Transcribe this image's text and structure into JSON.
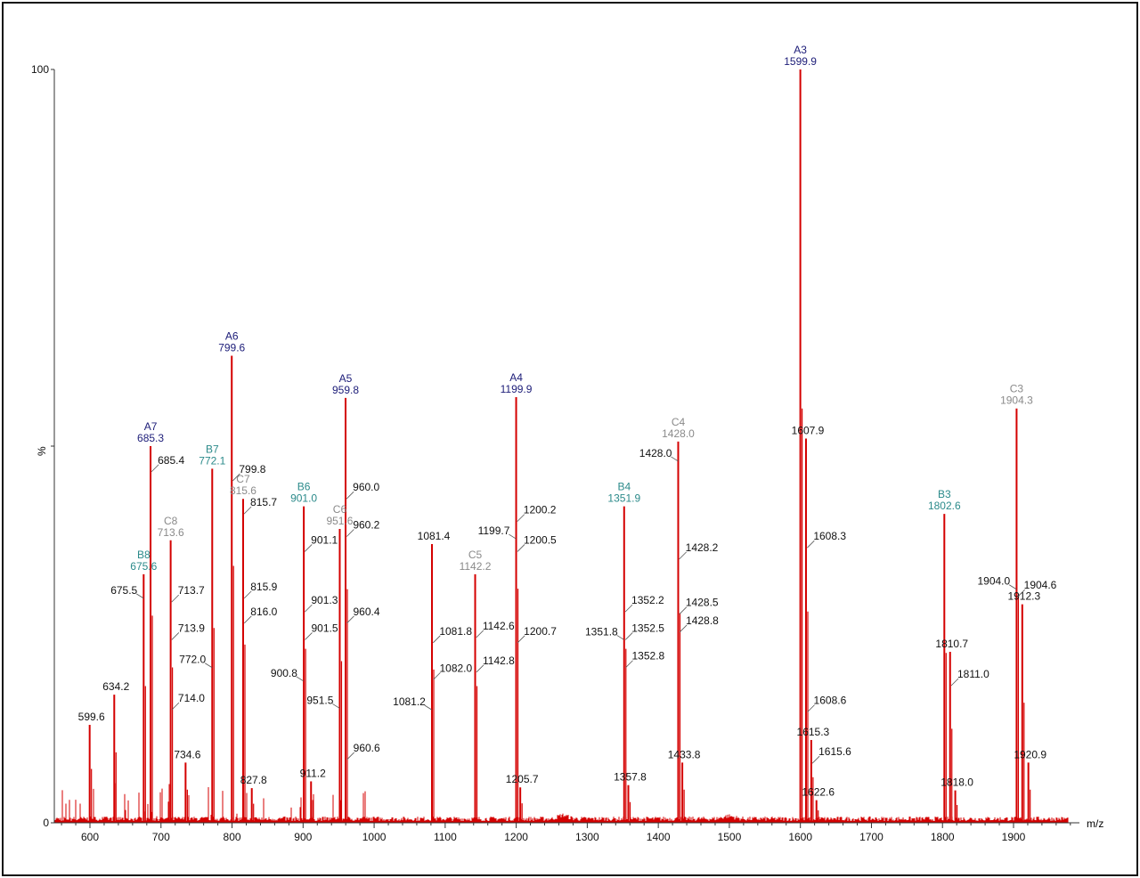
{
  "chart_data": {
    "type": "bar",
    "xlabel": "m/z",
    "ylabel": "%",
    "xlim": [
      550,
      1990
    ],
    "ylim": [
      0,
      100
    ],
    "x_ticks": [
      600,
      700,
      800,
      900,
      1000,
      1100,
      1200,
      1300,
      1400,
      1500,
      1600,
      1700,
      1800,
      1900
    ],
    "y_ticks": [
      0,
      100
    ],
    "grid": false,
    "colors": {
      "spectrum": "#d40000",
      "A": "#1c1c78",
      "B": "#2b8a8a",
      "C": "#8a8a8a",
      "plain": "#111111"
    },
    "peaks": [
      {
        "mz": 599.6,
        "intensity": 13,
        "label": "599.6",
        "series": "plain"
      },
      {
        "mz": 634.2,
        "intensity": 17,
        "label": "634.2",
        "series": "plain"
      },
      {
        "mz": 675.6,
        "intensity": 33,
        "ion": "B8",
        "label": "675.6",
        "series": "B"
      },
      {
        "mz": 685.3,
        "intensity": 50,
        "ion": "A7",
        "label": "685.3",
        "series": "A"
      },
      {
        "mz": 713.6,
        "intensity": 37.5,
        "ion": "C8",
        "label": "713.6",
        "series": "C"
      },
      {
        "mz": 734.6,
        "intensity": 8,
        "label": "734.6",
        "series": "plain"
      },
      {
        "mz": 772.1,
        "intensity": 47,
        "ion": "B7",
        "label": "772.1",
        "series": "B"
      },
      {
        "mz": 799.6,
        "intensity": 62,
        "ion": "A6",
        "label": "799.6",
        "series": "A"
      },
      {
        "mz": 815.6,
        "intensity": 43,
        "ion": "C7",
        "label": "815.6",
        "series": "C"
      },
      {
        "mz": 827.8,
        "intensity": 4.6,
        "label": "827.8",
        "series": "plain"
      },
      {
        "mz": 901.0,
        "intensity": 42,
        "ion": "B6",
        "label": "901.0",
        "series": "B"
      },
      {
        "mz": 911.2,
        "intensity": 5.5,
        "label": "911.2",
        "series": "plain"
      },
      {
        "mz": 951.6,
        "intensity": 39,
        "ion": "C6",
        "label": "951.6",
        "series": "C"
      },
      {
        "mz": 959.8,
        "intensity": 56.4,
        "ion": "A5",
        "label": "959.8",
        "series": "A"
      },
      {
        "mz": 1081.4,
        "intensity": 37,
        "label": "1081.4",
        "series": "plain"
      },
      {
        "mz": 1142.2,
        "intensity": 33,
        "ion": "C5",
        "label": "1142.2",
        "series": "C"
      },
      {
        "mz": 1199.9,
        "intensity": 56.5,
        "ion": "A4",
        "label": "1199.9",
        "series": "A"
      },
      {
        "mz": 1205.7,
        "intensity": 4.7,
        "label": "1205.7",
        "series": "plain"
      },
      {
        "mz": 1351.9,
        "intensity": 42,
        "ion": "B4",
        "label": "1351.9",
        "series": "B"
      },
      {
        "mz": 1357.8,
        "intensity": 5,
        "label": "1357.8",
        "series": "plain"
      },
      {
        "mz": 1428.0,
        "intensity": 50.6,
        "ion": "C4",
        "label": "1428.0",
        "series": "C"
      },
      {
        "mz": 1433.8,
        "intensity": 8,
        "label": "1433.8",
        "series": "plain"
      },
      {
        "mz": 1599.9,
        "intensity": 100,
        "ion": "A3",
        "label": "1599.9",
        "series": "A"
      },
      {
        "mz": 1607.9,
        "intensity": 51,
        "label": "1607.9",
        "series": "plain"
      },
      {
        "mz": 1615.3,
        "intensity": 11,
        "label": "1615.3",
        "series": "plain"
      },
      {
        "mz": 1622.6,
        "intensity": 3,
        "label": "1622.6",
        "series": "plain"
      },
      {
        "mz": 1802.6,
        "intensity": 41,
        "ion": "B3",
        "label": "1802.6",
        "series": "B"
      },
      {
        "mz": 1810.7,
        "intensity": 22.7,
        "label": "1810.7",
        "series": "plain"
      },
      {
        "mz": 1818.0,
        "intensity": 4.3,
        "label": "1818.0",
        "series": "plain"
      },
      {
        "mz": 1904.3,
        "intensity": 55,
        "ion": "C3",
        "label": "1904.3",
        "series": "C"
      },
      {
        "mz": 1912.3,
        "intensity": 29,
        "label": "1912.3",
        "series": "plain"
      },
      {
        "mz": 1920.9,
        "intensity": 8,
        "label": "1920.9",
        "series": "plain"
      }
    ],
    "annotations": [
      {
        "mz": 685.4,
        "at": 46.6,
        "label": "685.4",
        "side": "right"
      },
      {
        "mz": 675.5,
        "at": 29.8,
        "label": "675.5",
        "side": "left"
      },
      {
        "mz": 713.7,
        "at": 29.3,
        "label": "713.7",
        "side": "right"
      },
      {
        "mz": 713.9,
        "at": 24.3,
        "label": "713.9",
        "side": "right"
      },
      {
        "mz": 714.0,
        "at": 15,
        "label": "714.0",
        "side": "right"
      },
      {
        "mz": 772.0,
        "at": 20.6,
        "label": "772.0",
        "side": "left"
      },
      {
        "mz": 799.8,
        "at": 45.4,
        "label": "799.8",
        "side": "right"
      },
      {
        "mz": 815.7,
        "at": 41,
        "label": "815.7",
        "side": "right"
      },
      {
        "mz": 815.9,
        "at": 29.8,
        "label": "815.9",
        "side": "right"
      },
      {
        "mz": 816.0,
        "at": 26.5,
        "label": "816.0",
        "side": "right"
      },
      {
        "mz": 901.1,
        "at": 36,
        "label": "901.1",
        "side": "right"
      },
      {
        "mz": 901.3,
        "at": 28,
        "label": "901.3",
        "side": "right"
      },
      {
        "mz": 901.5,
        "at": 24.3,
        "label": "901.5",
        "side": "right"
      },
      {
        "mz": 900.8,
        "at": 18.8,
        "label": "900.8",
        "side": "left"
      },
      {
        "mz": 951.5,
        "at": 15.2,
        "label": "951.5",
        "side": "left"
      },
      {
        "mz": 960.0,
        "at": 43,
        "label": "960.0",
        "side": "right"
      },
      {
        "mz": 960.2,
        "at": 38,
        "label": "960.2",
        "side": "right"
      },
      {
        "mz": 960.4,
        "at": 26.5,
        "label": "960.4",
        "side": "right"
      },
      {
        "mz": 960.6,
        "at": 8.4,
        "label": "960.6",
        "side": "right"
      },
      {
        "mz": 1081.8,
        "at": 23.9,
        "label": "1081.8",
        "side": "right"
      },
      {
        "mz": 1082.0,
        "at": 19,
        "label": "1082.0",
        "side": "right"
      },
      {
        "mz": 1081.2,
        "at": 15,
        "label": "1081.2",
        "side": "left"
      },
      {
        "mz": 1142.6,
        "at": 24.6,
        "label": "1142.6",
        "side": "right"
      },
      {
        "mz": 1142.8,
        "at": 20,
        "label": "1142.8",
        "side": "right"
      },
      {
        "mz": 1199.7,
        "at": 37.7,
        "label": "1199.7",
        "side": "left"
      },
      {
        "mz": 1200.2,
        "at": 40,
        "label": "1200.2",
        "side": "right"
      },
      {
        "mz": 1200.5,
        "at": 36,
        "label": "1200.5",
        "side": "right"
      },
      {
        "mz": 1200.7,
        "at": 23.9,
        "label": "1200.7",
        "side": "right"
      },
      {
        "mz": 1352.2,
        "at": 28,
        "label": "1352.2",
        "side": "right"
      },
      {
        "mz": 1352.5,
        "at": 24.3,
        "label": "1352.5",
        "side": "right"
      },
      {
        "mz": 1351.8,
        "at": 24.3,
        "label": "1351.8",
        "side": "left"
      },
      {
        "mz": 1352.8,
        "at": 20.6,
        "label": "1352.8",
        "side": "right"
      },
      {
        "mz": 1428.0,
        "at": 48,
        "label": "1428.0",
        "side": "left"
      },
      {
        "mz": 1428.2,
        "at": 35,
        "label": "1428.2",
        "side": "right"
      },
      {
        "mz": 1428.5,
        "at": 27.7,
        "label": "1428.5",
        "side": "right"
      },
      {
        "mz": 1428.8,
        "at": 25.3,
        "label": "1428.8",
        "side": "right"
      },
      {
        "mz": 1608.3,
        "at": 36.5,
        "label": "1608.3",
        "side": "right"
      },
      {
        "mz": 1608.6,
        "at": 14.7,
        "label": "1608.6",
        "side": "right"
      },
      {
        "mz": 1615.6,
        "at": 7.9,
        "label": "1615.6",
        "side": "right"
      },
      {
        "mz": 1811.0,
        "at": 18.2,
        "label": "1811.0",
        "side": "right"
      },
      {
        "mz": 1904.0,
        "at": 31,
        "label": "1904.0",
        "side": "left"
      },
      {
        "mz": 1904.6,
        "at": 30,
        "label": "1904.6",
        "side": "right"
      }
    ]
  }
}
